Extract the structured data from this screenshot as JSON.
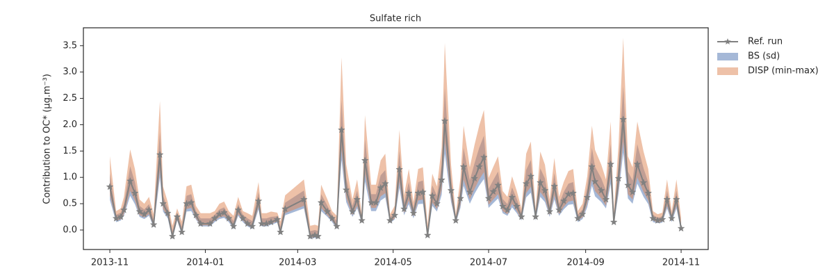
{
  "chart_data": {
    "type": "line",
    "title": "Sulfate rich",
    "ylabel": "Contribution to OC* (μg.m⁻³)",
    "x": [
      0,
      4,
      7,
      9,
      13,
      16,
      19,
      22,
      25,
      28,
      32,
      34,
      37,
      40,
      43,
      46,
      49,
      52,
      55,
      58,
      64,
      67,
      70,
      73,
      76,
      79,
      82,
      85,
      88,
      91,
      95,
      97,
      100,
      103,
      107,
      109,
      112,
      124,
      128,
      131,
      133,
      135,
      139,
      142,
      145,
      148,
      151,
      155,
      158,
      161,
      163,
      167,
      170,
      173,
      176,
      179,
      182,
      185,
      188,
      191,
      194,
      197,
      200,
      203,
      206,
      209,
      212,
      214,
      218,
      221,
      224,
      226,
      230,
      233,
      236,
      239,
      242,
      245,
      248,
      251,
      254,
      257,
      260,
      263,
      266,
      269,
      272,
      275,
      278,
      281,
      284,
      287,
      290,
      293,
      296,
      299,
      302,
      305,
      308,
      310,
      314,
      317,
      320,
      322,
      325,
      328,
      331,
      334,
      337,
      341,
      344,
      347,
      350,
      353,
      356,
      359,
      362,
      365
    ],
    "xlim": [
      -16.9,
      382.3
    ],
    "xticks": [
      {
        "value": 0,
        "label": "2013-11"
      },
      {
        "value": 61,
        "label": "2014-01"
      },
      {
        "value": 120,
        "label": "2014-03"
      },
      {
        "value": 181,
        "label": "2014-05"
      },
      {
        "value": 242,
        "label": "2014-07"
      },
      {
        "value": 304,
        "label": "2014-09"
      },
      {
        "value": 365,
        "label": "2014-11"
      }
    ],
    "ylim": [
      -0.37,
      3.84
    ],
    "yticks": [
      {
        "value": 0,
        "label": "0.0"
      },
      0.5,
      {
        "value": 1,
        "label": "1.0"
      },
      1.5,
      {
        "value": 2,
        "label": "2.0"
      },
      2.5,
      {
        "value": 3,
        "label": "3.0"
      },
      3.5
    ],
    "legend": "outside-upper-right",
    "series": [
      {
        "name": "BS (sd)",
        "kind": "band",
        "color": "#4c72b0",
        "alpha": 0.5,
        "lower": [
          0.57,
          0.15,
          0.18,
          0.27,
          0.65,
          0.49,
          0.25,
          0.21,
          0.27,
          0.05,
          1.0,
          0.35,
          0.22,
          -0.17,
          0.18,
          -0.09,
          0.35,
          0.36,
          0.2,
          0.07,
          0.07,
          0.15,
          0.21,
          0.23,
          0.15,
          0.02,
          0.27,
          0.15,
          0.07,
          0.02,
          0.39,
          0.07,
          0.07,
          0.1,
          0.14,
          -0.09,
          0.28,
          0.41,
          -0.17,
          -0.15,
          -0.17,
          0.36,
          0.25,
          0.15,
          0.02,
          1.33,
          0.53,
          0.25,
          0.41,
          0.13,
          0.92,
          0.36,
          0.36,
          0.56,
          0.62,
          0.13,
          0.2,
          0.8,
          0.28,
          0.49,
          0.22,
          0.49,
          0.5,
          -0.15,
          0.46,
          0.35,
          0.67,
          1.45,
          0.53,
          0.13,
          0.42,
          0.84,
          0.5,
          0.69,
          0.84,
          0.97,
          0.42,
          0.51,
          0.6,
          0.32,
          0.27,
          0.43,
          0.32,
          0.18,
          0.62,
          0.71,
          0.18,
          0.63,
          0.53,
          0.25,
          0.58,
          0.27,
          0.39,
          0.48,
          0.49,
          0.15,
          0.21,
          0.43,
          0.84,
          0.64,
          0.53,
          0.41,
          0.88,
          0.1,
          0.69,
          1.47,
          0.6,
          0.5,
          0.88,
          0.63,
          0.49,
          0.15,
          0.13,
          0.14,
          0.41,
          0.15,
          0.41,
          -0.02
        ],
        "upper": [
          1.07,
          0.29,
          0.33,
          0.49,
          1.21,
          0.91,
          0.46,
          0.39,
          0.49,
          0.2,
          1.86,
          0.65,
          0.42,
          -0.02,
          0.33,
          0.06,
          0.65,
          0.68,
          0.36,
          0.22,
          0.22,
          0.29,
          0.39,
          0.43,
          0.29,
          0.17,
          0.49,
          0.29,
          0.22,
          0.17,
          0.72,
          0.22,
          0.22,
          0.25,
          0.26,
          0.06,
          0.52,
          0.75,
          -0.02,
          0,
          -0.02,
          0.68,
          0.46,
          0.29,
          0.17,
          2.47,
          0.99,
          0.46,
          0.75,
          0.23,
          1.72,
          0.68,
          0.68,
          1.04,
          1.14,
          0.23,
          0.36,
          1.5,
          0.52,
          0.91,
          0.42,
          0.91,
          0.94,
          0,
          0.85,
          0.65,
          1.24,
          2.69,
          0.98,
          0.23,
          0.78,
          1.56,
          0.94,
          1.27,
          1.56,
          1.79,
          0.78,
          0.95,
          1.11,
          0.59,
          0.49,
          0.81,
          0.59,
          0.33,
          1.14,
          1.33,
          0.33,
          1.17,
          0.98,
          0.46,
          1.08,
          0.49,
          0.72,
          0.88,
          0.91,
          0.29,
          0.39,
          0.81,
          1.56,
          1.2,
          0.98,
          0.75,
          1.63,
          0.25,
          1.27,
          2.73,
          1.11,
          0.94,
          1.63,
          1.17,
          0.91,
          0.29,
          0.23,
          0.26,
          0.75,
          0.29,
          0.75,
          0.13
        ]
      },
      {
        "name": "DISP (min-max)",
        "kind": "band",
        "color": "#dd8452",
        "alpha": 0.5,
        "lower": [
          0.66,
          0.18,
          0.2,
          0.3,
          0.74,
          0.56,
          0.28,
          0.24,
          0.3,
          0.07,
          1.14,
          0.4,
          0.26,
          -0.15,
          0.2,
          -0.07,
          0.4,
          0.42,
          0.22,
          0.09,
          0.09,
          0.18,
          0.24,
          0.26,
          0.18,
          0.04,
          0.3,
          0.18,
          0.09,
          0.04,
          0.44,
          0.09,
          0.09,
          0.12,
          0.16,
          -0.07,
          0.32,
          0.46,
          -0.15,
          -0.13,
          -0.15,
          0.42,
          0.28,
          0.18,
          0.04,
          1.52,
          0.61,
          0.28,
          0.46,
          0.14,
          1.06,
          0.42,
          0.42,
          0.64,
          0.7,
          0.14,
          0.22,
          0.92,
          0.32,
          0.56,
          0.26,
          0.56,
          0.58,
          -0.13,
          0.52,
          0.4,
          0.76,
          1.66,
          0.6,
          0.14,
          0.48,
          0.96,
          0.58,
          0.78,
          0.96,
          1.1,
          0.48,
          0.58,
          0.68,
          0.36,
          0.3,
          0.5,
          0.36,
          0.2,
          0.7,
          0.82,
          0.2,
          0.72,
          0.6,
          0.28,
          0.66,
          0.3,
          0.44,
          0.54,
          0.56,
          0.18,
          0.24,
          0.5,
          0.96,
          0.74,
          0.6,
          0.46,
          1.0,
          0.12,
          0.78,
          1.68,
          0.68,
          0.58,
          1.0,
          0.72,
          0.56,
          0.18,
          0.14,
          0.16,
          0.46,
          0.18,
          0.46,
          0
        ],
        "upper": [
          1.4,
          0.36,
          0.41,
          0.63,
          1.53,
          1.16,
          0.58,
          0.5,
          0.63,
          0.3,
          2.45,
          0.83,
          0.53,
          0.08,
          0.41,
          0.16,
          0.83,
          0.86,
          0.46,
          0.32,
          0.32,
          0.36,
          0.5,
          0.54,
          0.36,
          0.27,
          0.63,
          0.36,
          0.32,
          0.27,
          0.91,
          0.32,
          0.32,
          0.35,
          0.33,
          0.16,
          0.66,
          0.96,
          0.08,
          0.1,
          0.08,
          0.86,
          0.58,
          0.36,
          0.27,
          3.28,
          1.25,
          0.58,
          0.96,
          0.3,
          2.18,
          0.86,
          0.86,
          1.32,
          1.45,
          0.3,
          0.46,
          1.9,
          0.66,
          1.16,
          0.53,
          1.16,
          1.19,
          0.1,
          1.07,
          0.83,
          1.57,
          3.55,
          1.24,
          0.3,
          0.99,
          1.98,
          1.19,
          1.62,
          1.98,
          2.28,
          0.99,
          1.2,
          1.4,
          0.74,
          0.63,
          1.02,
          0.74,
          0.41,
          1.45,
          1.68,
          0.41,
          1.49,
          1.24,
          0.58,
          1.37,
          0.63,
          0.91,
          1.12,
          1.16,
          0.36,
          0.5,
          1.02,
          1.98,
          1.52,
          1.24,
          0.96,
          2.06,
          0.35,
          1.62,
          3.65,
          1.4,
          1.19,
          2.06,
          1.49,
          1.16,
          0.36,
          0.3,
          0.33,
          0.96,
          0.36,
          0.96,
          0.23
        ]
      },
      {
        "name": "Ref. run",
        "kind": "line",
        "color": "#808080",
        "values": [
          0.82,
          0.22,
          0.25,
          0.38,
          0.93,
          0.7,
          0.35,
          0.3,
          0.38,
          0.1,
          1.43,
          0.5,
          0.32,
          -0.12,
          0.25,
          -0.04,
          0.5,
          0.52,
          0.28,
          0.12,
          0.12,
          0.22,
          0.3,
          0.33,
          0.22,
          0.07,
          0.38,
          0.22,
          0.12,
          0.07,
          0.55,
          0.12,
          0.12,
          0.15,
          0.2,
          -0.04,
          0.4,
          0.58,
          -0.12,
          -0.1,
          -0.12,
          0.52,
          0.35,
          0.22,
          0.07,
          1.9,
          0.76,
          0.35,
          0.58,
          0.18,
          1.32,
          0.52,
          0.52,
          0.8,
          0.88,
          0.18,
          0.28,
          1.15,
          0.4,
          0.7,
          0.32,
          0.7,
          0.72,
          -0.1,
          0.65,
          0.5,
          0.95,
          2.07,
          0.75,
          0.18,
          0.6,
          1.2,
          0.72,
          0.98,
          1.2,
          1.38,
          0.6,
          0.73,
          0.85,
          0.45,
          0.38,
          0.62,
          0.45,
          0.25,
          0.88,
          1.02,
          0.25,
          0.9,
          0.75,
          0.35,
          0.83,
          0.38,
          0.55,
          0.68,
          0.7,
          0.22,
          0.3,
          0.62,
          1.2,
          0.92,
          0.75,
          0.58,
          1.25,
          0.15,
          0.98,
          2.1,
          0.85,
          0.72,
          1.25,
          0.9,
          0.7,
          0.22,
          0.18,
          0.2,
          0.58,
          0.22,
          0.58,
          0.03
        ]
      }
    ]
  }
}
